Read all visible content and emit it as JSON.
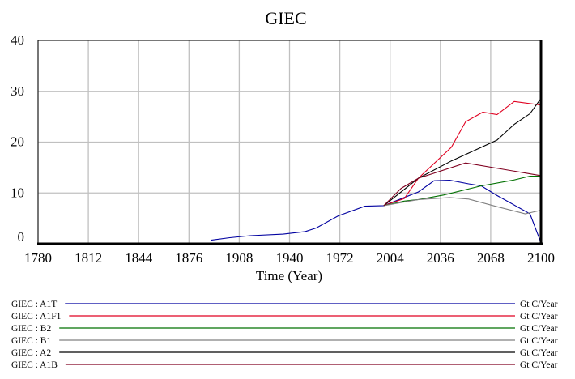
{
  "chart_data": {
    "type": "line",
    "title": "GIEC",
    "xlabel": "Time (Year)",
    "ylabel": "",
    "xlim": [
      1780,
      2100
    ],
    "ylim": [
      0,
      40
    ],
    "xticks": [
      1780,
      1812,
      1844,
      1876,
      1908,
      1940,
      1972,
      2004,
      2036,
      2068,
      2100
    ],
    "yticks": [
      0,
      10,
      20,
      30,
      40
    ],
    "grid": true,
    "legend_placement": "bottom",
    "series": [
      {
        "name": "GIEC : A1T",
        "unit": "Gt C/Year",
        "color": "#0000a0",
        "x": [
          1890,
          1902,
          1915,
          1936,
          1950,
          1957,
          1971,
          1988,
          2000,
          2022,
          2032,
          2042,
          2054,
          2062,
          2072,
          2093,
          2100
        ],
        "y": [
          0.7,
          1.2,
          1.6,
          1.9,
          2.4,
          3.1,
          5.5,
          7.4,
          7.5,
          10.2,
          12.4,
          12.5,
          11.8,
          11.4,
          9.5,
          5.9,
          0.2
        ]
      },
      {
        "name": "GIEC : A1F1",
        "unit": "Gt C/Year",
        "color": "#e00020",
        "x": [
          2000,
          2013,
          2022,
          2043,
          2052,
          2063,
          2072,
          2083,
          2100
        ],
        "y": [
          7.5,
          8.9,
          12.9,
          19.0,
          24.0,
          25.9,
          25.4,
          28.0,
          27.3
        ]
      },
      {
        "name": "GIEC : B2",
        "unit": "Gt C/Year",
        "color": "#007000",
        "x": [
          2000,
          2013,
          2022,
          2038,
          2062,
          2082,
          2093,
          2100
        ],
        "y": [
          7.5,
          8.4,
          8.7,
          9.6,
          11.4,
          12.5,
          13.3,
          13.3
        ]
      },
      {
        "name": "GIEC : B1",
        "unit": "Gt C/Year",
        "color": "#808080",
        "x": [
          2000,
          2022,
          2042,
          2054,
          2072,
          2090,
          2100
        ],
        "y": [
          7.5,
          8.7,
          9.1,
          8.8,
          7.3,
          5.9,
          6.6
        ]
      },
      {
        "name": "GIEC : A2",
        "unit": "Gt C/Year",
        "color": "#000000",
        "x": [
          2000,
          2022,
          2043,
          2072,
          2083,
          2093,
          2100
        ],
        "y": [
          7.5,
          12.9,
          16.3,
          20.4,
          23.5,
          25.6,
          28.6
        ]
      },
      {
        "name": "GIEC : A1B",
        "unit": "Gt C/Year",
        "color": "#800020",
        "x": [
          2000,
          2011,
          2022,
          2052,
          2100
        ],
        "y": [
          7.5,
          10.9,
          12.9,
          15.9,
          13.4
        ]
      }
    ]
  }
}
